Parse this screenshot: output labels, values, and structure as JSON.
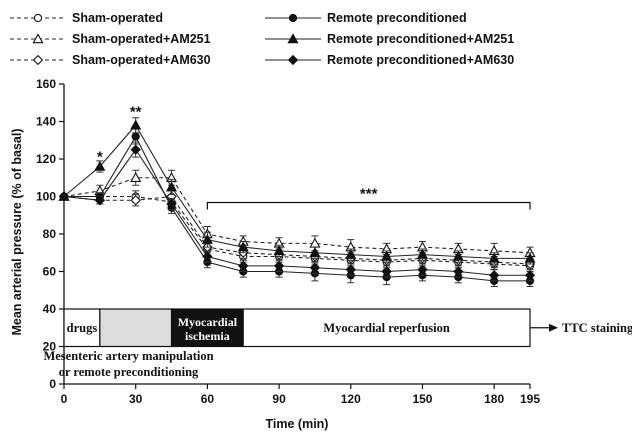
{
  "chart_data": {
    "type": "line",
    "xlabel": "Time (min)",
    "ylabel": "Mean arterial pressure (% of basal)",
    "xlim": [
      0,
      195
    ],
    "ylim": [
      0,
      160
    ],
    "xticks": [
      0,
      30,
      60,
      90,
      120,
      150,
      180,
      195
    ],
    "yticks": [
      0,
      20,
      40,
      60,
      80,
      100,
      120,
      140,
      160
    ],
    "x": [
      0,
      15,
      30,
      45,
      60,
      75,
      90,
      105,
      120,
      135,
      150,
      165,
      180,
      195
    ],
    "series": [
      {
        "name": "Sham-operated",
        "line": "dashed",
        "marker": "circle",
        "filled": false,
        "values": [
          100,
          100,
          100,
          97,
          72,
          68,
          68,
          67,
          66,
          65,
          66,
          65,
          64,
          63
        ],
        "errors": [
          0,
          2,
          3,
          3,
          4,
          3,
          3,
          3,
          3,
          3,
          3,
          3,
          3,
          3
        ]
      },
      {
        "name": "Sham-operated+AM251",
        "line": "dashed",
        "marker": "triangle",
        "filled": false,
        "values": [
          100,
          103,
          110,
          110,
          80,
          76,
          75,
          75,
          73,
          72,
          73,
          72,
          71,
          70
        ],
        "errors": [
          0,
          3,
          4,
          4,
          4,
          3,
          3,
          4,
          4,
          3,
          3,
          3,
          4,
          3
        ]
      },
      {
        "name": "Sham-operated+AM630",
        "line": "dashed",
        "marker": "diamond",
        "filled": false,
        "values": [
          100,
          98,
          98,
          100,
          73,
          70,
          69,
          68,
          67,
          66,
          67,
          66,
          65,
          64
        ],
        "errors": [
          0,
          2,
          3,
          3,
          3,
          3,
          3,
          3,
          3,
          3,
          3,
          3,
          3,
          3
        ]
      },
      {
        "name": "Remote preconditioned",
        "line": "solid",
        "marker": "circle",
        "filled": true,
        "values": [
          100,
          100,
          132,
          94,
          65,
          60,
          60,
          59,
          58,
          57,
          58,
          57,
          55,
          55
        ],
        "errors": [
          0,
          2,
          4,
          3,
          3,
          3,
          3,
          4,
          4,
          4,
          3,
          3,
          3,
          3
        ]
      },
      {
        "name": "Remote preconditioned+AM251",
        "line": "solid",
        "marker": "triangle",
        "filled": true,
        "values": [
          100,
          116,
          138,
          105,
          77,
          73,
          71,
          70,
          69,
          68,
          69,
          68,
          67,
          67
        ],
        "errors": [
          0,
          3,
          4,
          4,
          4,
          3,
          3,
          3,
          3,
          3,
          3,
          3,
          3,
          3
        ]
      },
      {
        "name": "Remote preconditioned+AM630",
        "line": "solid",
        "marker": "diamond",
        "filled": true,
        "values": [
          100,
          98,
          125,
          96,
          68,
          63,
          63,
          62,
          61,
          60,
          61,
          60,
          58,
          58
        ],
        "errors": [
          0,
          2,
          4,
          3,
          3,
          3,
          3,
          3,
          3,
          3,
          3,
          3,
          3,
          3
        ]
      }
    ],
    "annotations": [
      {
        "text": "*",
        "x": 15,
        "y": 122
      },
      {
        "text": "**",
        "x": 30,
        "y": 146
      },
      {
        "text": "***",
        "x": 127.5,
        "y": 100,
        "bracket": [
          60,
          195
        ]
      }
    ],
    "protocol": {
      "drugs": "drugs",
      "ischemia_line1": "Myocardial",
      "ischemia_line2": "ischemia",
      "reperfusion": "Myocardial reperfusion",
      "manipulation_line1": "Mesenteric artery manipulation",
      "manipulation_line2": "or remote preconditioning",
      "ttc": "TTC staining",
      "segments": [
        {
          "name": "drugs",
          "start": 0,
          "end": 15,
          "fill": "#ffffff"
        },
        {
          "name": "manipulation",
          "start": 15,
          "end": 45,
          "fill": "#dcdcdc"
        },
        {
          "name": "ischemia",
          "start": 45,
          "end": 75,
          "fill": "#111111"
        },
        {
          "name": "reperfusion",
          "start": 75,
          "end": 195,
          "fill": "#ffffff"
        }
      ]
    }
  }
}
